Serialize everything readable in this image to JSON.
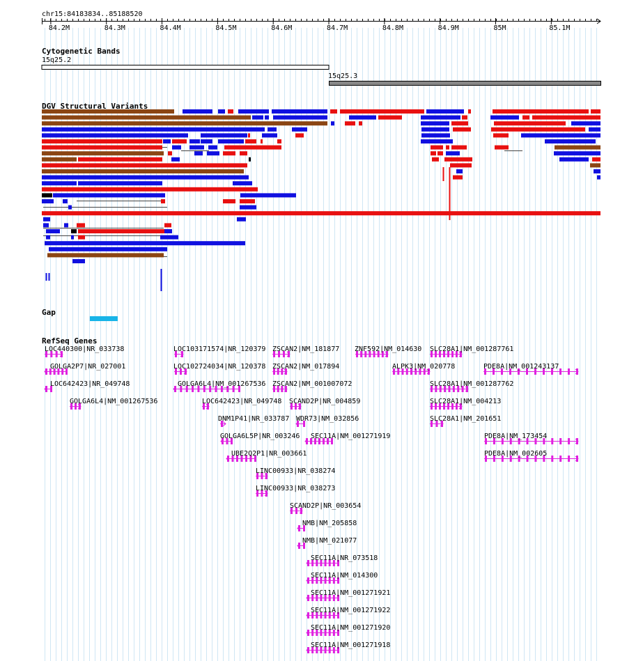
{
  "locus": "chr15:84183834..85188520",
  "ruler": {
    "ticks": [
      "84.2M",
      "84.3M",
      "84.4M",
      "84.5M",
      "84.6M",
      "84.7M",
      "84.8M",
      "84.9M",
      "85M",
      "85.1M"
    ],
    "tick_positions_mb": [
      84.2,
      84.3,
      84.4,
      84.5,
      84.6,
      84.7,
      84.8,
      84.9,
      85.0,
      85.1
    ],
    "view_start_mb": 84.183834,
    "view_end_mb": 85.18852
  },
  "tracks": {
    "cytoband": {
      "title": "Cytogenetic Bands",
      "bands": [
        {
          "name": "15q25.2",
          "start_mb": 84.183834,
          "end_mb": 84.7,
          "stain": "gneg"
        },
        {
          "name": "15q25.3",
          "start_mb": 84.7,
          "end_mb": 85.18852,
          "stain": "gpos"
        }
      ]
    },
    "dgv": {
      "title": "DGV Structural Variants",
      "colors": {
        "gain": "#1010e0",
        "loss": "#e81010",
        "complex": "#8b4513",
        "other": "#000000"
      }
    },
    "gap": {
      "title": "Gap",
      "features": [
        {
          "start_mb": 84.27,
          "end_mb": 84.32,
          "color": "#18b4e8"
        }
      ]
    },
    "refseq": {
      "title": "RefSeq Genes",
      "color": "#e020e0",
      "genes": [
        {
          "label": "LOC440300|NR_033738"
        },
        {
          "label": "GOLGA2P7|NR_027001"
        },
        {
          "label": "LOC642423|NR_049748"
        },
        {
          "label": "GOLGA6L4|NM_001267536"
        },
        {
          "label": "LOC103171574|NR_120379"
        },
        {
          "label": "LOC102724034|NR_120378"
        },
        {
          "label": "GOLGA6L4|NM_001267536"
        },
        {
          "label": "LOC642423|NR_049748"
        },
        {
          "label": "DNM1P41|NR_033787"
        },
        {
          "label": "GOLGA6L5P|NR_003246"
        },
        {
          "label": "UBE2Q2P1|NR_003661"
        },
        {
          "label": "LINC00933|NR_038274"
        },
        {
          "label": "LINC00933|NR_038273"
        },
        {
          "label": "ZSCAN2|NM_181877"
        },
        {
          "label": "ZSCAN2|NM_017894"
        },
        {
          "label": "ZSCAN2|NM_001007072"
        },
        {
          "label": "SCAND2P|NR_004859"
        },
        {
          "label": "WDR73|NM_032856"
        },
        {
          "label": "SEC11A|NM_001271919"
        },
        {
          "label": "SCAND2P|NR_003654"
        },
        {
          "label": "NMB|NM_205858"
        },
        {
          "label": "NMB|NM_021077"
        },
        {
          "label": "SEC11A|NR_073518"
        },
        {
          "label": "SEC11A|NM_014300"
        },
        {
          "label": "SEC11A|NM_001271921"
        },
        {
          "label": "SEC11A|NM_001271922"
        },
        {
          "label": "SEC11A|NM_001271920"
        },
        {
          "label": "SEC11A|NM_001271918"
        },
        {
          "label": "ZNF592|NM_014630"
        },
        {
          "label": "ALPK3|NM_020778"
        },
        {
          "label": "SLC28A1|NM_001287761"
        },
        {
          "label": "SLC28A1|NM_001287762"
        },
        {
          "label": "SLC28A1|NM_004213"
        },
        {
          "label": "SLC28A1|NM_201651"
        },
        {
          "label": "PDE8A|NM_001243137"
        },
        {
          "label": "PDE8A|NM_173454"
        },
        {
          "label": "PDE8A|NM_002605"
        }
      ]
    }
  }
}
